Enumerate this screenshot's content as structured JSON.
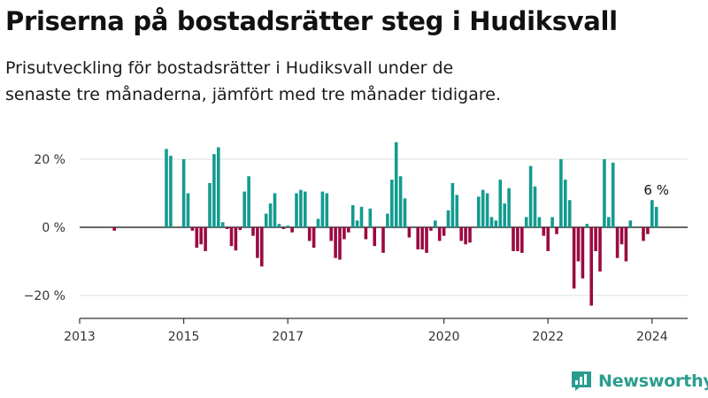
{
  "header": {
    "title": "Priserna på bostadsrätter steg i Hudiksvall",
    "subtitle": "Prisutveckling för bostadsrätter i Hudiksvall under de senaste tre månaderna, jämfört med tre månader tidigare."
  },
  "brand": {
    "name": "Newsworthy"
  },
  "colors": {
    "positive": "#139b8f",
    "negative": "#9b0a42",
    "zero_line": "#333333",
    "grid": "#dddddd",
    "brand": "#2a9d8f"
  },
  "chart_data": {
    "type": "bar",
    "x_start": "2013-01",
    "interval": "month",
    "ylim": [
      -26,
      27
    ],
    "y_ticks": [
      20,
      0,
      -20
    ],
    "y_tick_labels": [
      "20 %",
      "0 %",
      "−20 %"
    ],
    "x_ticks": [
      2013,
      2015,
      2017,
      2020,
      2022,
      2024
    ],
    "x_tick_labels": [
      "2013",
      "2015",
      "2017",
      "2020",
      "2022",
      "2024"
    ],
    "grid": true,
    "values": [
      null,
      null,
      null,
      null,
      null,
      null,
      null,
      null,
      -1,
      null,
      null,
      null,
      null,
      null,
      null,
      null,
      null,
      null,
      null,
      null,
      null,
      null,
      null,
      null,
      null,
      null,
      null,
      null,
      null,
      null,
      null,
      null,
      null,
      null,
      null,
      null,
      null,
      null,
      null,
      null,
      null,
      null,
      null,
      null,
      null,
      null,
      null,
      null,
      null,
      null,
      null,
      null,
      null,
      null,
      null,
      null,
      null,
      null,
      null,
      null,
      null,
      null,
      null,
      null,
      null,
      null,
      null,
      null,
      null,
      null,
      null,
      null,
      null,
      null,
      null,
      null,
      null,
      null,
      null,
      null,
      null,
      null,
      null,
      null,
      null,
      null,
      null,
      null,
      null,
      null,
      null,
      null,
      null,
      null,
      null,
      null,
      null,
      null,
      null,
      null,
      null,
      null,
      null,
      null,
      null,
      null,
      null,
      null,
      null,
      null,
      null,
      null,
      null,
      null,
      null,
      null,
      null,
      null,
      null,
      null,
      null,
      null,
      null,
      null,
      null,
      null,
      null,
      null,
      null,
      null,
      null,
      null,
      null,
      null,
      null,
      null,
      null,
      null,
      null,
      null,
      null,
      null,
      null,
      null,
      null,
      null,
      null,
      null,
      null,
      null,
      null,
      null,
      null,
      null,
      null,
      null,
      null,
      null,
      null,
      null,
      null,
      null,
      null,
      null,
      null,
      null,
      null,
      null,
      null,
      null,
      null,
      null,
      null,
      null,
      null,
      null,
      null,
      null,
      null,
      null,
      null,
      null,
      null,
      null,
      null,
      null,
      null,
      null,
      null,
      null,
      null,
      null
    ],
    "series": [
      {
        "values": [
          null,
          null,
          null,
          null,
          null,
          null,
          null,
          null,
          -1,
          null,
          null,
          null,
          null,
          null,
          null,
          null,
          null,
          null,
          null,
          null,
          23,
          21,
          null,
          null,
          20,
          10,
          -1,
          -6,
          -5,
          -7,
          13,
          21.5,
          23.5,
          1.5,
          -0.5,
          -5.5,
          -6.8,
          -0.8,
          10.5,
          15,
          -2.5,
          -9,
          -11.5,
          4,
          7,
          10,
          1,
          -0.5,
          0.5,
          -1.5,
          10,
          11,
          10.5,
          -4,
          -6,
          2.5,
          10.5,
          10,
          -4,
          -9,
          -9.5,
          -3.5,
          -1.5,
          6.5,
          2,
          6,
          -3.5,
          5.5,
          -5.5,
          null,
          -7.5,
          4,
          14,
          25,
          15,
          8.5,
          -3,
          null,
          -6.5,
          -6.5,
          -7.5,
          -1,
          2,
          -4,
          -2.5,
          5,
          13,
          9.5,
          -4,
          -5,
          -4.5,
          null,
          9,
          11,
          10,
          3,
          2,
          14,
          7,
          11.5,
          -7,
          -7,
          -7.5,
          3,
          18,
          12,
          3,
          -2.5,
          -7,
          3,
          -2,
          20,
          14,
          8,
          -18,
          -10,
          -15,
          1,
          -23,
          -7,
          -13,
          20,
          3,
          19,
          -9,
          -5,
          -10,
          2,
          null,
          null,
          -4,
          -2,
          8,
          6
        ]
      }
    ],
    "annotation": {
      "label": "6 %"
    }
  }
}
